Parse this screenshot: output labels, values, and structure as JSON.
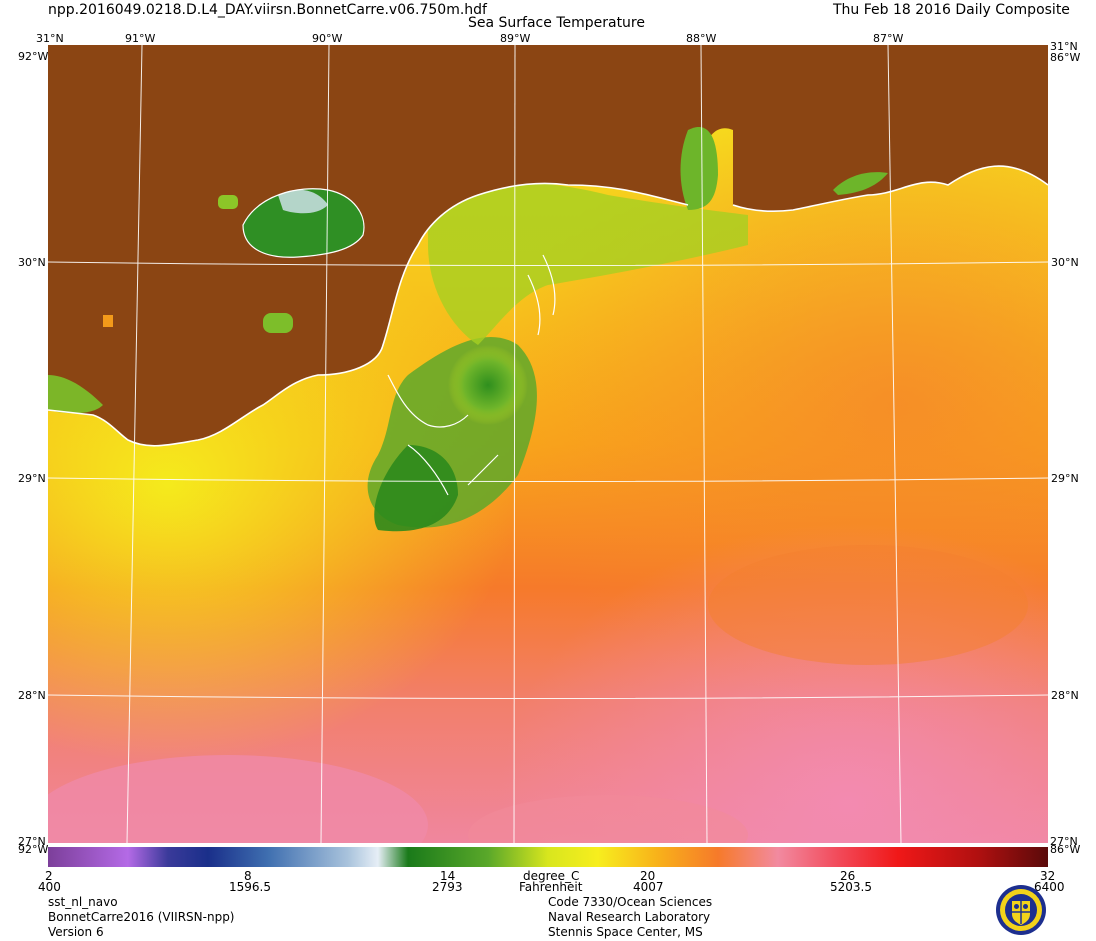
{
  "header": {
    "filename": "npp.2016049.0218.D.L4_DAY.viirsn.BonnetCarre.v06.750m.hdf",
    "product_title": "Sea Surface Temperature",
    "date_label": "Thu Feb 18 2016 Daily Composite"
  },
  "map": {
    "lon_labels": [
      "91°W",
      "90°W",
      "89°W",
      "88°W",
      "87°W"
    ],
    "lat_labels": [
      "31°N",
      "30°N",
      "29°N",
      "28°N"
    ],
    "corner_labels": {
      "top_left": "31°N",
      "top_left_w": "92°W",
      "top_right": "31°N",
      "top_right_w": "86°W",
      "bottom_left": "27°N",
      "bottom_left_w": "92°W",
      "bottom_right": "27°N",
      "bottom_right_w": "86°W"
    },
    "colors": {
      "land": "#8b4513",
      "graticule": "#ffffff",
      "coast": "#ffffff"
    }
  },
  "colorbar": {
    "celsius_ticks": [
      "2",
      "8",
      "14",
      "20",
      "26",
      "32"
    ],
    "fahrenheit_ticks": [
      "400",
      "1596.5",
      "2793",
      "4007",
      "5203.5",
      "6400"
    ],
    "unit_c": "degree_C",
    "unit_f": "Fahrenheit"
  },
  "footer": {
    "left": [
      "sst_nl_navo",
      "BonnetCarre2016 (VIIRSN-npp)",
      "Version 6"
    ],
    "right": [
      "Code 7330/Ocean Sciences",
      "Naval Research Laboratory",
      "Stennis Space Center, MS"
    ]
  },
  "logo": {
    "icon": "nrl-seal-icon"
  }
}
